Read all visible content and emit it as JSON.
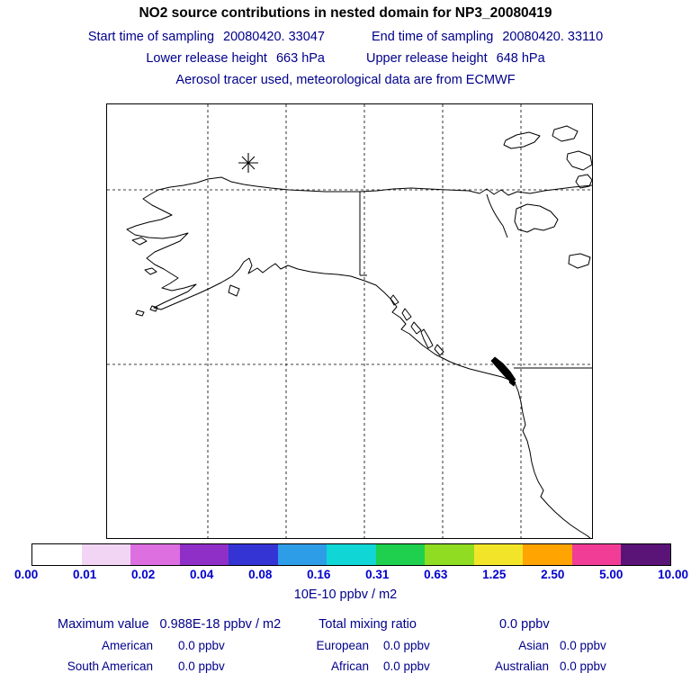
{
  "title": "NO2 source contributions in nested domain for NP3_20080419",
  "sampling": {
    "start_label": "Start time of sampling",
    "start_value": "20080420. 33047",
    "end_label": "End time of sampling",
    "end_value": "20080420. 33110",
    "lower_release_label": "Lower release height",
    "lower_release_value": "663 hPa",
    "upper_release_label": "Upper release height",
    "upper_release_value": "648 hPa",
    "tracer_note": "Aerosol tracer used, meteorological data are from ECMWF"
  },
  "colorbar": {
    "labels": [
      "0.00",
      "0.01",
      "0.02",
      "0.04",
      "0.08",
      "0.16",
      "0.31",
      "0.63",
      "1.25",
      "2.50",
      "5.00",
      "10.00"
    ],
    "colors": [
      "#ffffff",
      "#f2d5f5",
      "#dd6fe0",
      "#8f2fc8",
      "#3434d4",
      "#2e9de8",
      "#10d6d6",
      "#1ed04e",
      "#8fdc23",
      "#f2e529",
      "#ffa400",
      "#f23d96",
      "#5a1478"
    ],
    "units": "10E-10 ppbv / m2",
    "label_color": "#0000cd",
    "text_color": "#00008b"
  },
  "stats": {
    "maximum_label": "Maximum value",
    "maximum_value": "0.988E-18 ppbv / m2",
    "total_label": "Total mixing ratio",
    "total_value": "0.0 ppbv",
    "regions": [
      {
        "label": "American",
        "value": "0.0 ppbv"
      },
      {
        "label": "European",
        "value": "0.0 ppbv"
      },
      {
        "label": "Asian",
        "value": "0.0 ppbv"
      },
      {
        "label": "South American",
        "value": "0.0 ppbv"
      },
      {
        "label": "African",
        "value": "0.0 ppbv"
      },
      {
        "label": "Australian",
        "value": "0.0 ppbv"
      }
    ]
  },
  "chart_data": {
    "type": "heatmap",
    "title": "NO2 source contributions in nested domain for NP3_20080419",
    "description": "Geographic concentration map over Alaska / NW North America; field is entirely below the lowest contour level (no colored cells), release location marked with an asterisk in northern Alaska",
    "colorbar_levels": [
      0.0,
      0.01,
      0.02,
      0.04,
      0.08,
      0.16,
      0.31,
      0.63,
      1.25,
      2.5,
      5.0,
      10.0
    ],
    "colorbar_units": "10E-10 ppbv / m2",
    "maximum_value": "0.988E-18 ppbv / m2",
    "total_mixing_ratio_ppbv": 0.0,
    "series": [
      {
        "name": "American",
        "value_ppbv": 0.0
      },
      {
        "name": "European",
        "value_ppbv": 0.0
      },
      {
        "name": "Asian",
        "value_ppbv": 0.0
      },
      {
        "name": "South American",
        "value_ppbv": 0.0
      },
      {
        "name": "African",
        "value_ppbv": 0.0
      },
      {
        "name": "Australian",
        "value_ppbv": 0.0
      }
    ],
    "grid": "dashed graticule, 2 horizontal x 5 vertical lines",
    "legend_position": "horizontal colorbar below map"
  }
}
